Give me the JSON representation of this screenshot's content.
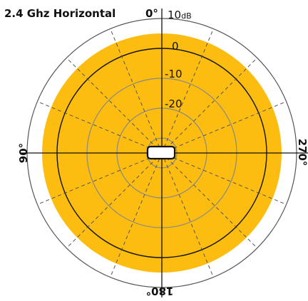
{
  "chart_data": {
    "type": "polar",
    "title": "2.4 Ghz Horizontal",
    "angle_labels": {
      "top": "0°",
      "left": "90°",
      "right": "270°",
      "bottom": "180°"
    },
    "radial_scale": {
      "unit": "dB",
      "max_label": "10",
      "ring_labels": [
        "0",
        "-10",
        "-20"
      ],
      "rings_db": [
        10,
        0,
        -10,
        -20,
        -30
      ],
      "ref_ring_db": 0
    },
    "series": [
      {
        "pattern": "omnidirectional",
        "gain_db": 5
      }
    ],
    "spokes_every_deg": 22.5,
    "colors": {
      "fill": "#fdbd10",
      "ring": "#888888",
      "outer_ring": "#555555",
      "ref_ring": "#111111",
      "axis": "#111111",
      "spoke": "#555555"
    }
  }
}
